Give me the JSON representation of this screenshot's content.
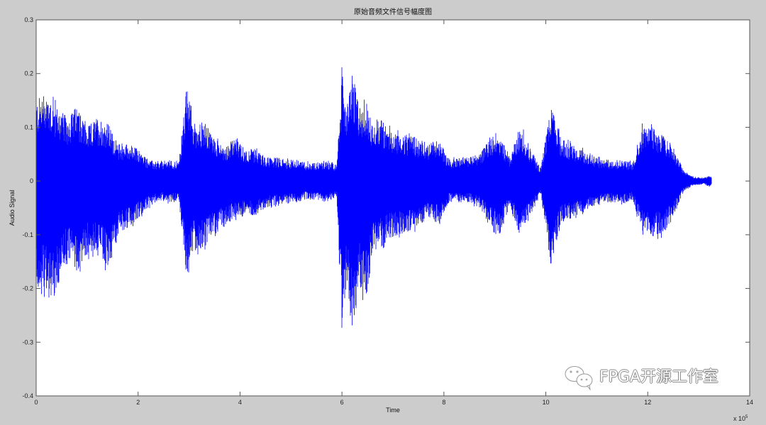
{
  "chart_data": {
    "type": "line",
    "title": "原始音频文件信号幅度图",
    "xlabel": "Time",
    "ylabel": "Audio Signal",
    "x_exponent_label": "x 10",
    "x_exponent": "5",
    "xlim": [
      0,
      14
    ],
    "ylim": [
      -0.4,
      0.3
    ],
    "xticks": [
      "0",
      "2",
      "4",
      "6",
      "8",
      "10",
      "12",
      "14"
    ],
    "yticks": [
      "-0.4",
      "-0.3",
      "-0.2",
      "-0.1",
      "0",
      "0.1",
      "0.2",
      "0.3"
    ],
    "grid": false,
    "series_color": "#0000ff",
    "envelope": {
      "x": [
        0,
        0.2,
        0.4,
        0.6,
        0.8,
        1.0,
        1.2,
        1.4,
        1.6,
        1.8,
        2.0,
        2.2,
        2.4,
        2.6,
        2.8,
        2.95,
        3.1,
        3.3,
        3.5,
        3.7,
        3.9,
        4.1,
        4.3,
        4.5,
        4.7,
        4.9,
        5.1,
        5.3,
        5.5,
        5.7,
        5.9,
        6.0,
        6.1,
        6.2,
        6.35,
        6.45,
        6.6,
        6.75,
        6.9,
        7.1,
        7.3,
        7.5,
        7.7,
        7.9,
        8.1,
        8.3,
        8.5,
        8.7,
        8.9,
        9.1,
        9.3,
        9.5,
        9.7,
        9.9,
        10.1,
        10.3,
        10.5,
        10.7,
        10.9,
        11.1,
        11.3,
        11.5,
        11.7,
        11.9,
        12.1,
        12.3,
        12.5,
        12.7,
        12.9,
        13.1,
        13.2,
        13.25
      ],
      "upper": [
        0.15,
        0.17,
        0.14,
        0.12,
        0.14,
        0.1,
        0.12,
        0.11,
        0.07,
        0.07,
        0.06,
        0.04,
        0.035,
        0.04,
        0.035,
        0.175,
        0.11,
        0.11,
        0.08,
        0.065,
        0.08,
        0.06,
        0.06,
        0.045,
        0.045,
        0.04,
        0.04,
        0.035,
        0.035,
        0.04,
        0.03,
        0.205,
        0.14,
        0.2,
        0.14,
        0.145,
        0.11,
        0.12,
        0.1,
        0.09,
        0.085,
        0.08,
        0.07,
        0.08,
        0.04,
        0.045,
        0.045,
        0.05,
        0.085,
        0.085,
        0.045,
        0.105,
        0.06,
        0.025,
        0.14,
        0.08,
        0.07,
        0.06,
        0.05,
        0.04,
        0.04,
        0.04,
        0.035,
        0.105,
        0.1,
        0.085,
        0.065,
        0.02,
        0.008,
        0.006,
        0.01,
        0.008
      ],
      "lower": [
        -0.2,
        -0.22,
        -0.22,
        -0.15,
        -0.17,
        -0.14,
        -0.13,
        -0.17,
        -0.1,
        -0.09,
        -0.07,
        -0.05,
        -0.035,
        -0.04,
        -0.035,
        -0.18,
        -0.13,
        -0.13,
        -0.1,
        -0.085,
        -0.07,
        -0.06,
        -0.065,
        -0.05,
        -0.045,
        -0.04,
        -0.04,
        -0.035,
        -0.035,
        -0.04,
        -0.03,
        -0.28,
        -0.19,
        -0.28,
        -0.2,
        -0.245,
        -0.14,
        -0.125,
        -0.11,
        -0.1,
        -0.1,
        -0.085,
        -0.07,
        -0.08,
        -0.04,
        -0.04,
        -0.04,
        -0.05,
        -0.085,
        -0.1,
        -0.045,
        -0.105,
        -0.065,
        -0.025,
        -0.16,
        -0.08,
        -0.07,
        -0.06,
        -0.05,
        -0.04,
        -0.04,
        -0.045,
        -0.035,
        -0.1,
        -0.105,
        -0.1,
        -0.07,
        -0.02,
        -0.008,
        -0.006,
        -0.012,
        -0.008
      ]
    }
  },
  "watermark": {
    "text": "FPGA开源工作室",
    "icon": "wechat-icon"
  }
}
